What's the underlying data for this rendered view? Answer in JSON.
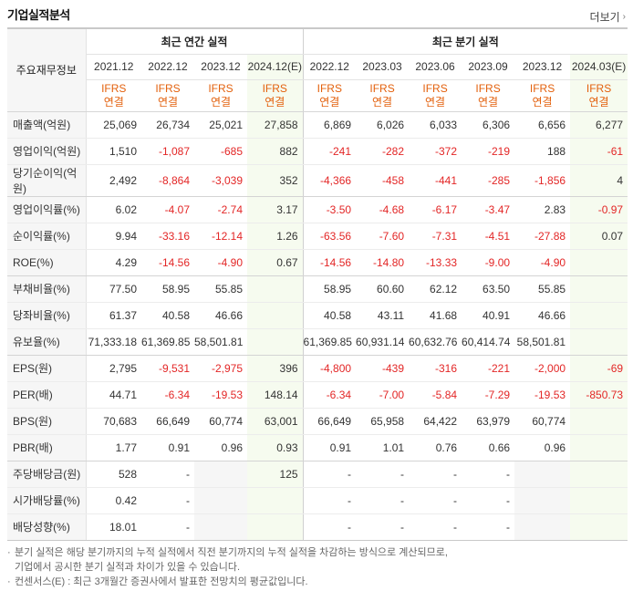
{
  "header": {
    "title": "기업실적분석",
    "more_label": "더보기"
  },
  "table": {
    "corner_label": "주요재무정보",
    "annual_label": "최근 연간 실적",
    "quarter_label": "최근 분기 실적",
    "annual_years": [
      "2021.12",
      "2022.12",
      "2023.12",
      "2024.12(E)"
    ],
    "quarter_years": [
      "2022.12",
      "2023.03",
      "2023.06",
      "2023.09",
      "2023.12",
      "2024.03(E)"
    ],
    "basis_top": "IFRS",
    "basis_bottom": "연결",
    "rows": [
      {
        "label": "매출액(억원)",
        "values": [
          "25,069",
          "26,734",
          "25,021",
          "27,858",
          "6,869",
          "6,026",
          "6,033",
          "6,306",
          "6,656",
          "6,277"
        ]
      },
      {
        "label": "영업이익(억원)",
        "values": [
          "1,510",
          "-1,087",
          "-685",
          "882",
          "-241",
          "-282",
          "-372",
          "-219",
          "188",
          "-61"
        ]
      },
      {
        "label": "당기순이익(억원)",
        "values": [
          "2,492",
          "-8,864",
          "-3,039",
          "352",
          "-4,366",
          "-458",
          "-441",
          "-285",
          "-1,856",
          "4"
        ]
      },
      {
        "label": "영업이익률(%)",
        "values": [
          "6.02",
          "-4.07",
          "-2.74",
          "3.17",
          "-3.50",
          "-4.68",
          "-6.17",
          "-3.47",
          "2.83",
          "-0.97"
        ]
      },
      {
        "label": "순이익률(%)",
        "values": [
          "9.94",
          "-33.16",
          "-12.14",
          "1.26",
          "-63.56",
          "-7.60",
          "-7.31",
          "-4.51",
          "-27.88",
          "0.07"
        ]
      },
      {
        "label": "ROE(%)",
        "values": [
          "4.29",
          "-14.56",
          "-4.90",
          "0.67",
          "-14.56",
          "-14.80",
          "-13.33",
          "-9.00",
          "-4.90",
          ""
        ]
      },
      {
        "label": "부채비율(%)",
        "values": [
          "77.50",
          "58.95",
          "55.85",
          "",
          "58.95",
          "60.60",
          "62.12",
          "63.50",
          "55.85",
          ""
        ]
      },
      {
        "label": "당좌비율(%)",
        "values": [
          "61.37",
          "40.58",
          "46.66",
          "",
          "40.58",
          "43.11",
          "41.68",
          "40.91",
          "46.66",
          ""
        ]
      },
      {
        "label": "유보율(%)",
        "values": [
          "71,333.18",
          "61,369.85",
          "58,501.81",
          "",
          "61,369.85",
          "60,931.14",
          "60,632.76",
          "60,414.74",
          "58,501.81",
          ""
        ]
      },
      {
        "label": "EPS(원)",
        "values": [
          "2,795",
          "-9,531",
          "-2,975",
          "396",
          "-4,800",
          "-439",
          "-316",
          "-221",
          "-2,000",
          "-69"
        ]
      },
      {
        "label": "PER(배)",
        "values": [
          "44.71",
          "-6.34",
          "-19.53",
          "148.14",
          "-6.34",
          "-7.00",
          "-5.84",
          "-7.29",
          "-19.53",
          "-850.73"
        ]
      },
      {
        "label": "BPS(원)",
        "values": [
          "70,683",
          "66,649",
          "60,774",
          "63,001",
          "66,649",
          "65,958",
          "64,422",
          "63,979",
          "60,774",
          ""
        ]
      },
      {
        "label": "PBR(배)",
        "values": [
          "1.77",
          "0.91",
          "0.96",
          "0.93",
          "0.91",
          "1.01",
          "0.76",
          "0.66",
          "0.96",
          ""
        ]
      },
      {
        "label": "주당배당금(원)",
        "values": [
          "528",
          "-",
          "",
          "125",
          "-",
          "-",
          "-",
          "-",
          "",
          ""
        ]
      },
      {
        "label": "시가배당률(%)",
        "values": [
          "0.42",
          "-",
          "",
          "",
          "-",
          "-",
          "-",
          "-",
          "",
          ""
        ]
      },
      {
        "label": "배당성향(%)",
        "values": [
          "18.01",
          "-",
          "",
          "",
          "-",
          "-",
          "-",
          "-",
          "",
          ""
        ]
      }
    ]
  },
  "notes": {
    "line1": "분기 실적은 해당 분기까지의 누적 실적에서 직전 분기까지의 누적 실적을 차감하는 방식으로 계산되므로,",
    "line1b": "기업에서 공시한 분기 실적과 차이가 있을 수 있습니다.",
    "line2": "컨센서스(E) : 최근 3개월간 증권사에서 발표한 전망치의 평균값입니다."
  },
  "colors": {
    "negative": "#e32626",
    "ifrs": "#e3600c",
    "estimate_bg": "#f6fbef"
  }
}
